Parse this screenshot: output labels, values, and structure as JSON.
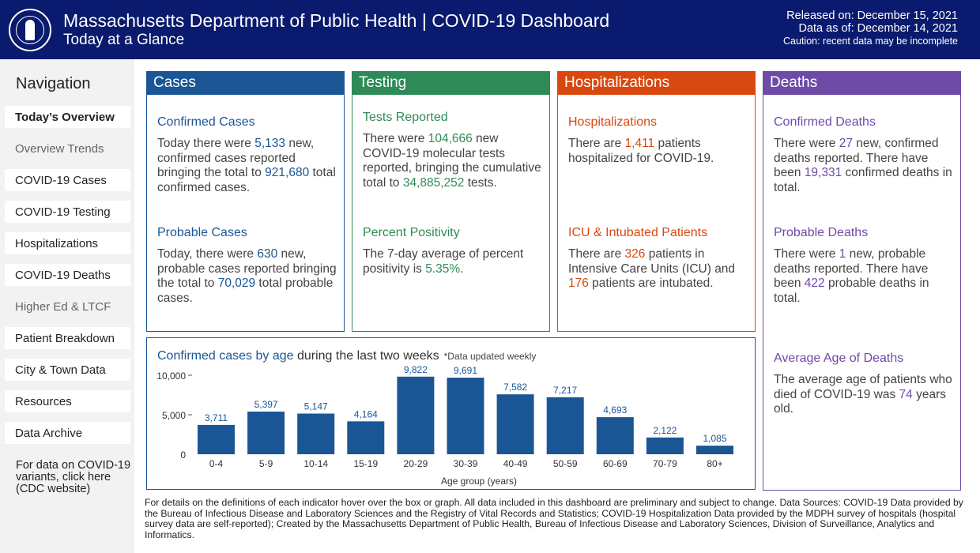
{
  "header": {
    "title": "Massachusetts Department of Public Health  |  COVID-19 Dashboard",
    "subtitle": "Today at a Glance",
    "released": "Released on: December 15, 2021",
    "data_as_of": "Data as of: December 14, 2021",
    "caution": "Caution: recent data may be incomplete"
  },
  "nav": {
    "title": "Navigation",
    "items": [
      {
        "label": "Today’s Overview"
      },
      {
        "label": "Overview Trends"
      },
      {
        "label": "COVID-19 Cases"
      },
      {
        "label": "COVID-19 Testing"
      },
      {
        "label": "Hospitalizations"
      },
      {
        "label": "COVID-19 Deaths"
      },
      {
        "label": "Higher Ed & LTCF"
      },
      {
        "label": "Patient Breakdown"
      },
      {
        "label": "City & Town Data"
      },
      {
        "label": "Resources"
      },
      {
        "label": "Data Archive"
      }
    ],
    "variants_link": "For data on COVID-19 variants, click here (CDC website)"
  },
  "colors": {
    "cases": "#1a5695",
    "testing": "#2e8b57",
    "hospitalizations": "#d9480f",
    "deaths": "#6f4ba8",
    "header_bg": "#0a1a6e"
  },
  "cases": {
    "title": "Cases",
    "confirmed_label": "Confirmed Cases",
    "confirmed_t1": "Today there were ",
    "confirmed_new": "5,133",
    "confirmed_t2": " new, confirmed cases reported bringing the total to ",
    "confirmed_total": "921,680",
    "confirmed_t3": " total confirmed cases.",
    "probable_label": "Probable Cases",
    "probable_t1": "Today, there were ",
    "probable_new": "630",
    "probable_t2": " new, probable cases reported bringing the total to ",
    "probable_total": "70,029",
    "probable_t3": " total probable cases."
  },
  "testing": {
    "title": "Testing",
    "tests_label": "Tests Reported",
    "tests_t1": "There were ",
    "tests_new": "104,666",
    "tests_t2": " new COVID-19 molecular tests reported, bringing the cumulative total to ",
    "tests_total": "34,885,252",
    "tests_t3": " tests.",
    "positivity_label": "Percent Positivity",
    "positivity_t1": "The 7-day average of percent positivity is ",
    "positivity_value": "5.35%",
    "positivity_t2": "."
  },
  "hospitalizations": {
    "title": "Hospitalizations",
    "hosp_label": "Hospitalizations",
    "hosp_t1": "There are ",
    "hosp_value": "1,411",
    "hosp_t2": " patients hospitalized for COVID-19.",
    "icu_label": "ICU & Intubated Patients",
    "icu_t1": "There are ",
    "icu_value": "326",
    "icu_t2": " patients in Intensive Care Units (ICU) and ",
    "intubated_value": "176",
    "icu_t3": " patients are intubated."
  },
  "deaths": {
    "title": "Deaths",
    "confirmed_label": "Confirmed Deaths",
    "confirmed_t1": "There were ",
    "confirmed_new": "27",
    "confirmed_t2": " new, confirmed deaths reported. There have been ",
    "confirmed_total": "19,331",
    "confirmed_t3": " confirmed deaths in total.",
    "probable_label": "Probable Deaths",
    "probable_t1": "There were ",
    "probable_new": "1",
    "probable_t2": " new, probable deaths reported. There have been ",
    "probable_total": "422",
    "probable_t3": " probable deaths in total.",
    "age_label": "Average Age of Deaths",
    "age_t1": "The average age of patients who died of COVID-19 was ",
    "age_value": "74",
    "age_t2": " years old."
  },
  "chart_title": {
    "highlight": "Confirmed cases by age",
    "rest": " during the last two weeks",
    "note": "*Data updated weekly"
  },
  "chart_data": {
    "type": "bar",
    "categories": [
      "0-4",
      "5-9",
      "10-14",
      "15-19",
      "20-29",
      "30-39",
      "40-49",
      "50-59",
      "60-69",
      "70-79",
      "80+"
    ],
    "values": [
      3711,
      5397,
      5147,
      4164,
      9822,
      9691,
      7582,
      7217,
      4693,
      2122,
      1085
    ],
    "value_labels": [
      "3,711",
      "5,397",
      "5,147",
      "4,164",
      "9,822",
      "9,691",
      "7,582",
      "7,217",
      "4,693",
      "2,122",
      "1,085"
    ],
    "xlabel": "Age group (years)",
    "ylabel": "",
    "yticks": [
      0,
      5000,
      10000
    ],
    "ytick_labels": [
      "0",
      "5,000",
      "10,000"
    ],
    "ylim": [
      0,
      11000
    ],
    "bar_color": "#1a5695",
    "grid": false
  },
  "footer": {
    "text": "For details on the definitions of each indicator hover over the box or graph. All data included in this dashboard are preliminary and subject to change. Data Sources: COVID-19 Data provided by the Bureau of Infectious Disease and Laboratory Sciences and the Registry of Vital Records and Statistics; COVID-19 Hospitalization Data provided by the MDPH survey of hospitals (hospital survey data are self-reported); Created by the Massachusetts Department of Public Health, Bureau of Infectious Disease and Laboratory Sciences, Division of Surveillance, Analytics and Informatics."
  }
}
